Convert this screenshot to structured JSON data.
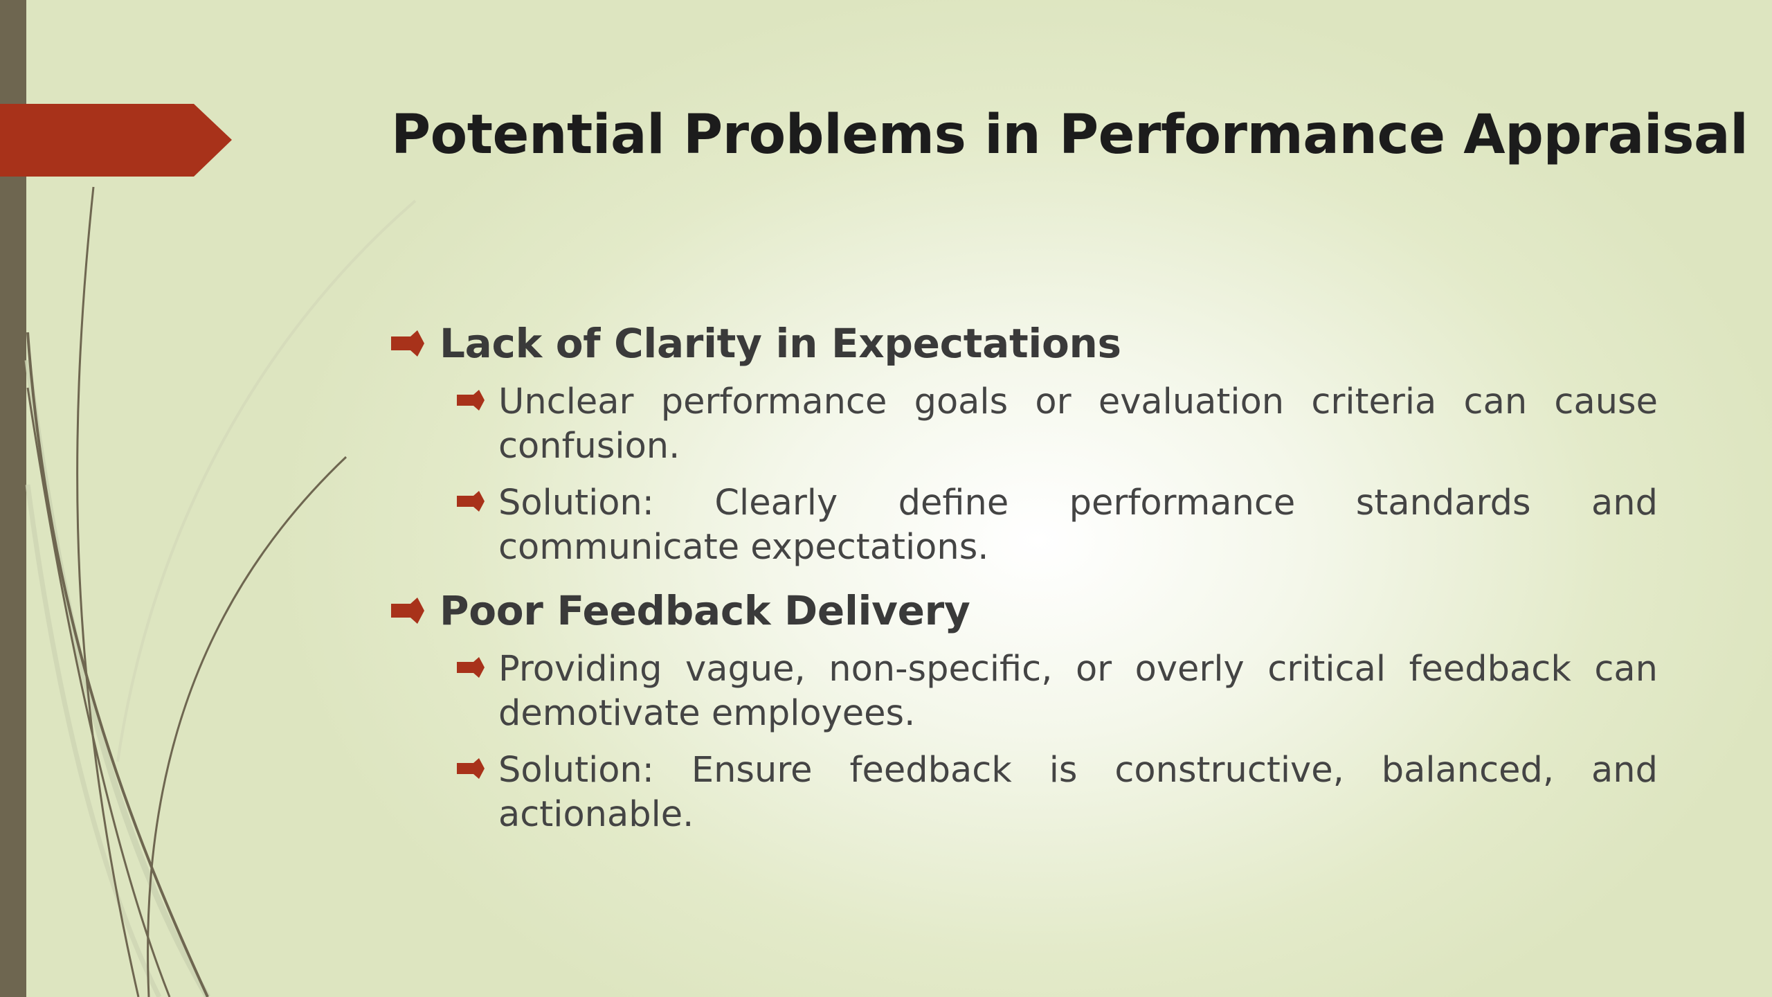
{
  "slide": {
    "title": "Potential Problems in Performance Appraisal",
    "sections": [
      {
        "heading": "Lack of Clarity in Expectations",
        "points": [
          "Unclear performance goals or evaluation criteria can cause confusion.",
          "Solution: Clearly define performance standards and communicate expectations."
        ]
      },
      {
        "heading": "Poor Feedback Delivery",
        "points": [
          "Providing vague, non-specific, or overly critical feedback can demotivate employees.",
          "Solution: Ensure feedback is constructive, balanced, and actionable."
        ]
      }
    ]
  },
  "colors": {
    "accent": "#a8321a",
    "sidebar": "#6e6650",
    "text": "#3a3a3a",
    "background": "#e3eac9"
  },
  "icons": {
    "bullet": "arrow-bullet-icon"
  }
}
